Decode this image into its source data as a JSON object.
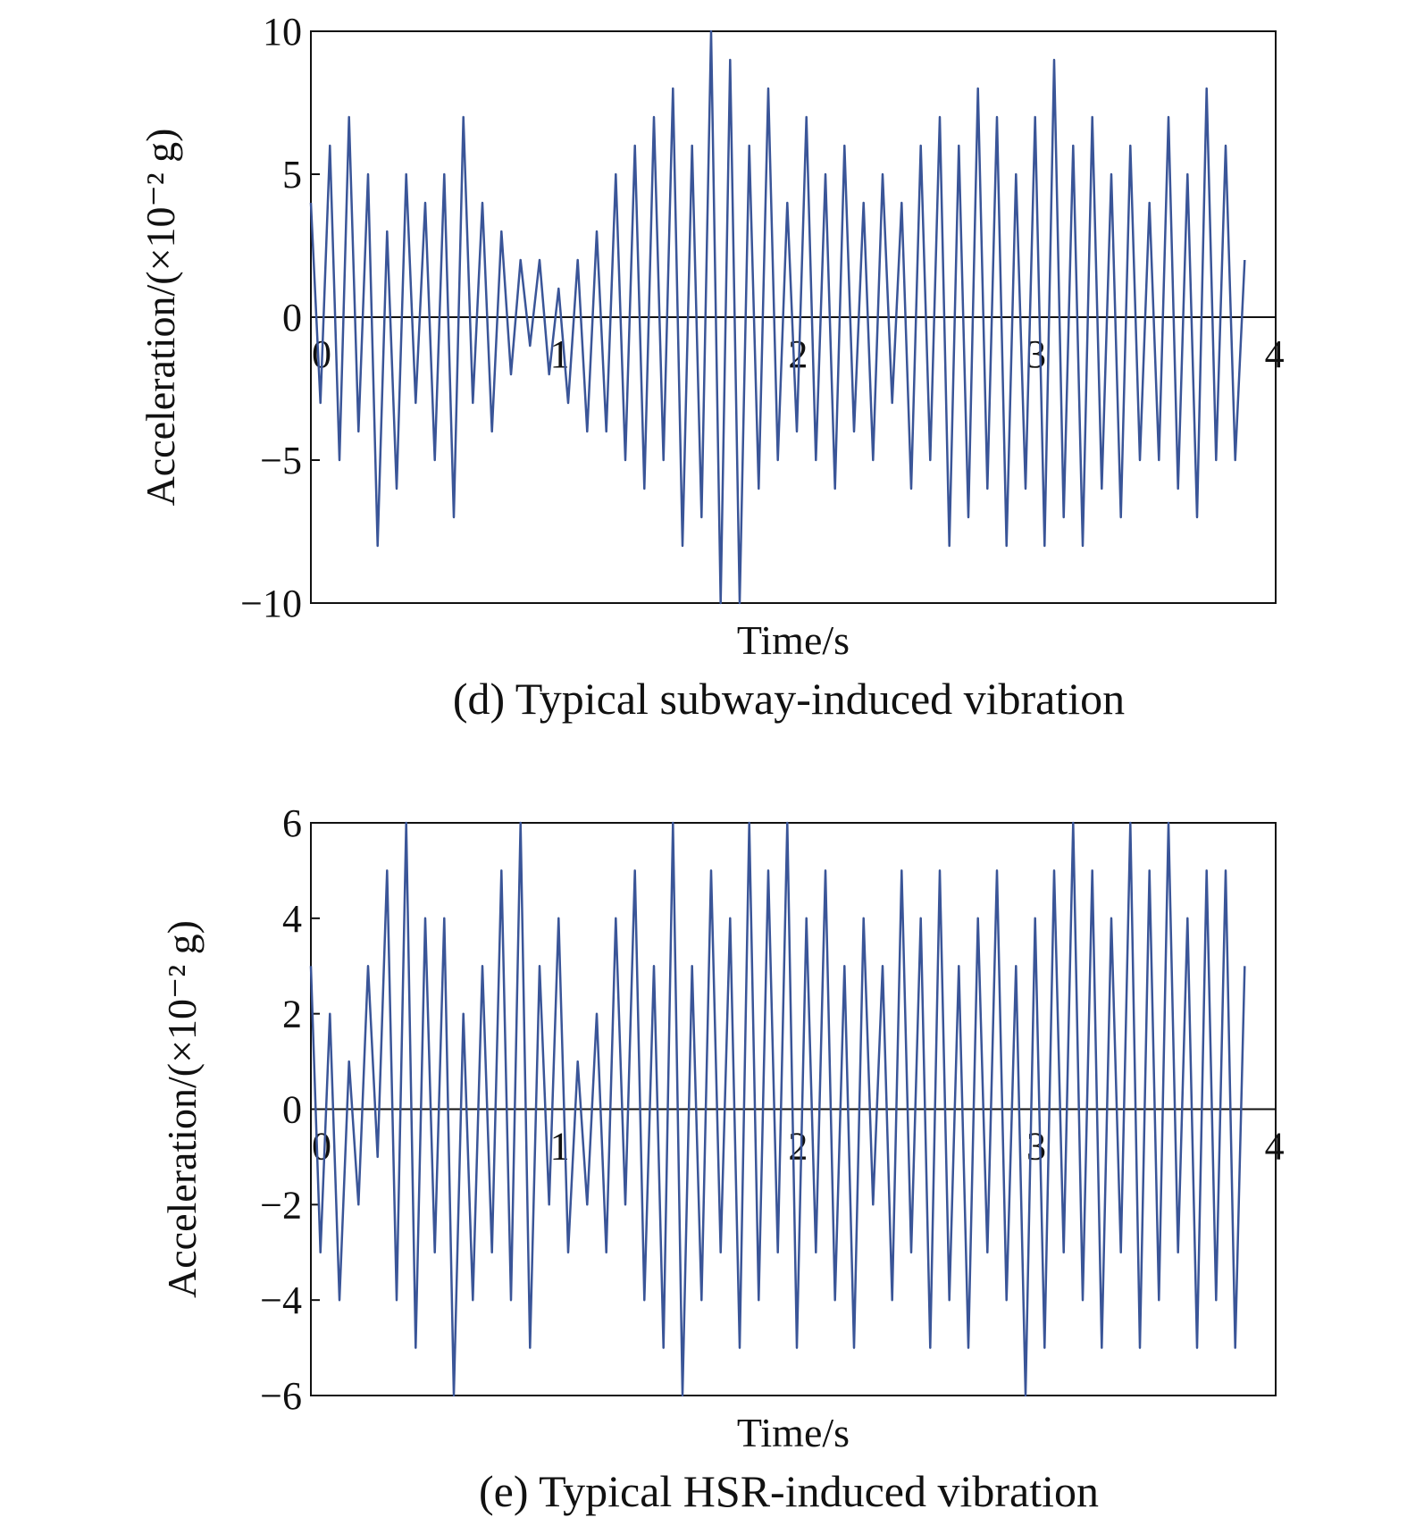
{
  "chart_data": [
    {
      "type": "line",
      "y_label": "Acceleration/(×10⁻² g)",
      "x_label": "Time/s",
      "title": "(d) Typical subway-induced vibration",
      "xlim": [
        0,
        4.05
      ],
      "ylim": [
        -10,
        10
      ],
      "xticks": [
        0,
        1,
        2,
        3,
        4
      ],
      "yticks": [
        {
          "value": -10,
          "label": "−10"
        },
        {
          "value": -5,
          "label": "−5"
        },
        0,
        5,
        10
      ],
      "color": "#3a5598",
      "x": [
        0,
        0.04,
        0.08,
        0.12,
        0.16,
        0.2,
        0.24,
        0.28,
        0.32,
        0.36,
        0.4,
        0.44,
        0.48,
        0.52,
        0.56,
        0.6,
        0.64,
        0.68,
        0.72,
        0.76,
        0.8,
        0.84,
        0.88,
        0.92,
        0.96,
        1,
        1.04,
        1.08,
        1.12,
        1.16,
        1.2,
        1.24,
        1.28,
        1.32,
        1.36,
        1.4,
        1.44,
        1.48,
        1.52,
        1.56,
        1.6,
        1.64,
        1.68,
        1.72,
        1.76,
        1.8,
        1.84,
        1.88,
        1.92,
        1.96,
        2,
        2.04,
        2.08,
        2.12,
        2.16,
        2.2,
        2.24,
        2.28,
        2.32,
        2.36,
        2.4,
        2.44,
        2.48,
        2.52,
        2.56,
        2.6,
        2.64,
        2.68,
        2.72,
        2.76,
        2.8,
        2.84,
        2.88,
        2.92,
        2.96,
        3,
        3.04,
        3.08,
        3.12,
        3.16,
        3.2,
        3.24,
        3.28,
        3.32,
        3.36,
        3.4,
        3.44,
        3.48,
        3.52,
        3.56,
        3.6,
        3.64,
        3.68,
        3.72,
        3.76,
        3.8,
        3.84,
        3.88,
        3.92
      ],
      "values": [
        4,
        -3,
        6,
        -5,
        7,
        -4,
        5,
        -8,
        3,
        -6,
        5,
        -3,
        4,
        -5,
        5,
        -7,
        7,
        -3,
        4,
        -4,
        3,
        -2,
        2,
        -1,
        2,
        -2,
        1,
        -3,
        2,
        -4,
        3,
        -4,
        5,
        -5,
        6,
        -6,
        7,
        -5,
        8,
        -8,
        6,
        -7,
        10,
        -10,
        9,
        -10,
        6,
        -6,
        8,
        -5,
        4,
        -4,
        7,
        -5,
        5,
        -6,
        6,
        -4,
        4,
        -5,
        5,
        -3,
        4,
        -6,
        6,
        -5,
        7,
        -8,
        6,
        -7,
        8,
        -6,
        7,
        -8,
        5,
        -6,
        7,
        -8,
        9,
        -7,
        6,
        -8,
        7,
        -6,
        5,
        -7,
        6,
        -5,
        4,
        -5,
        7,
        -6,
        5,
        -7,
        8,
        -5,
        6,
        -5,
        2
      ]
    },
    {
      "type": "line",
      "y_label": "Acceleration/(×10⁻² g)",
      "x_label": "Time/s",
      "title": "(e) Typical HSR-induced vibration",
      "xlim": [
        0,
        4.05
      ],
      "ylim": [
        -6,
        6
      ],
      "xticks": [
        0,
        1,
        2,
        3,
        4
      ],
      "yticks": [
        {
          "value": -6,
          "label": "−6"
        },
        {
          "value": -4,
          "label": "−4"
        },
        {
          "value": -2,
          "label": "−2"
        },
        0,
        2,
        4,
        6
      ],
      "color": "#3a5598",
      "x": [
        0,
        0.04,
        0.08,
        0.12,
        0.16,
        0.2,
        0.24,
        0.28,
        0.32,
        0.36,
        0.4,
        0.44,
        0.48,
        0.52,
        0.56,
        0.6,
        0.64,
        0.68,
        0.72,
        0.76,
        0.8,
        0.84,
        0.88,
        0.92,
        0.96,
        1,
        1.04,
        1.08,
        1.12,
        1.16,
        1.2,
        1.24,
        1.28,
        1.32,
        1.36,
        1.4,
        1.44,
        1.48,
        1.52,
        1.56,
        1.6,
        1.64,
        1.68,
        1.72,
        1.76,
        1.8,
        1.84,
        1.88,
        1.92,
        1.96,
        2,
        2.04,
        2.08,
        2.12,
        2.16,
        2.2,
        2.24,
        2.28,
        2.32,
        2.36,
        2.4,
        2.44,
        2.48,
        2.52,
        2.56,
        2.6,
        2.64,
        2.68,
        2.72,
        2.76,
        2.8,
        2.84,
        2.88,
        2.92,
        2.96,
        3,
        3.04,
        3.08,
        3.12,
        3.16,
        3.2,
        3.24,
        3.28,
        3.32,
        3.36,
        3.4,
        3.44,
        3.48,
        3.52,
        3.56,
        3.6,
        3.64,
        3.68,
        3.72,
        3.76,
        3.8,
        3.84,
        3.88,
        3.92
      ],
      "values": [
        3,
        -3,
        2,
        -4,
        1,
        -2,
        3,
        -1,
        5,
        -4,
        6,
        -5,
        4,
        -3,
        4,
        -6,
        2,
        -4,
        3,
        -3,
        5,
        -4,
        6,
        -5,
        3,
        -2,
        4,
        -3,
        1,
        -2,
        2,
        -3,
        4,
        -2,
        5,
        -4,
        3,
        -5,
        6,
        -6,
        3,
        -4,
        5,
        -3,
        4,
        -5,
        6,
        -4,
        5,
        -3,
        6,
        -5,
        4,
        -3,
        5,
        -4,
        3,
        -5,
        4,
        -2,
        3,
        -4,
        5,
        -3,
        4,
        -5,
        5,
        -4,
        3,
        -5,
        4,
        -3,
        5,
        -4,
        3,
        -6,
        4,
        -5,
        5,
        -3,
        6,
        -4,
        5,
        -5,
        4,
        -3,
        6,
        -5,
        5,
        -4,
        6,
        -3,
        4,
        -5,
        5,
        -4,
        5,
        -5,
        3
      ]
    }
  ]
}
